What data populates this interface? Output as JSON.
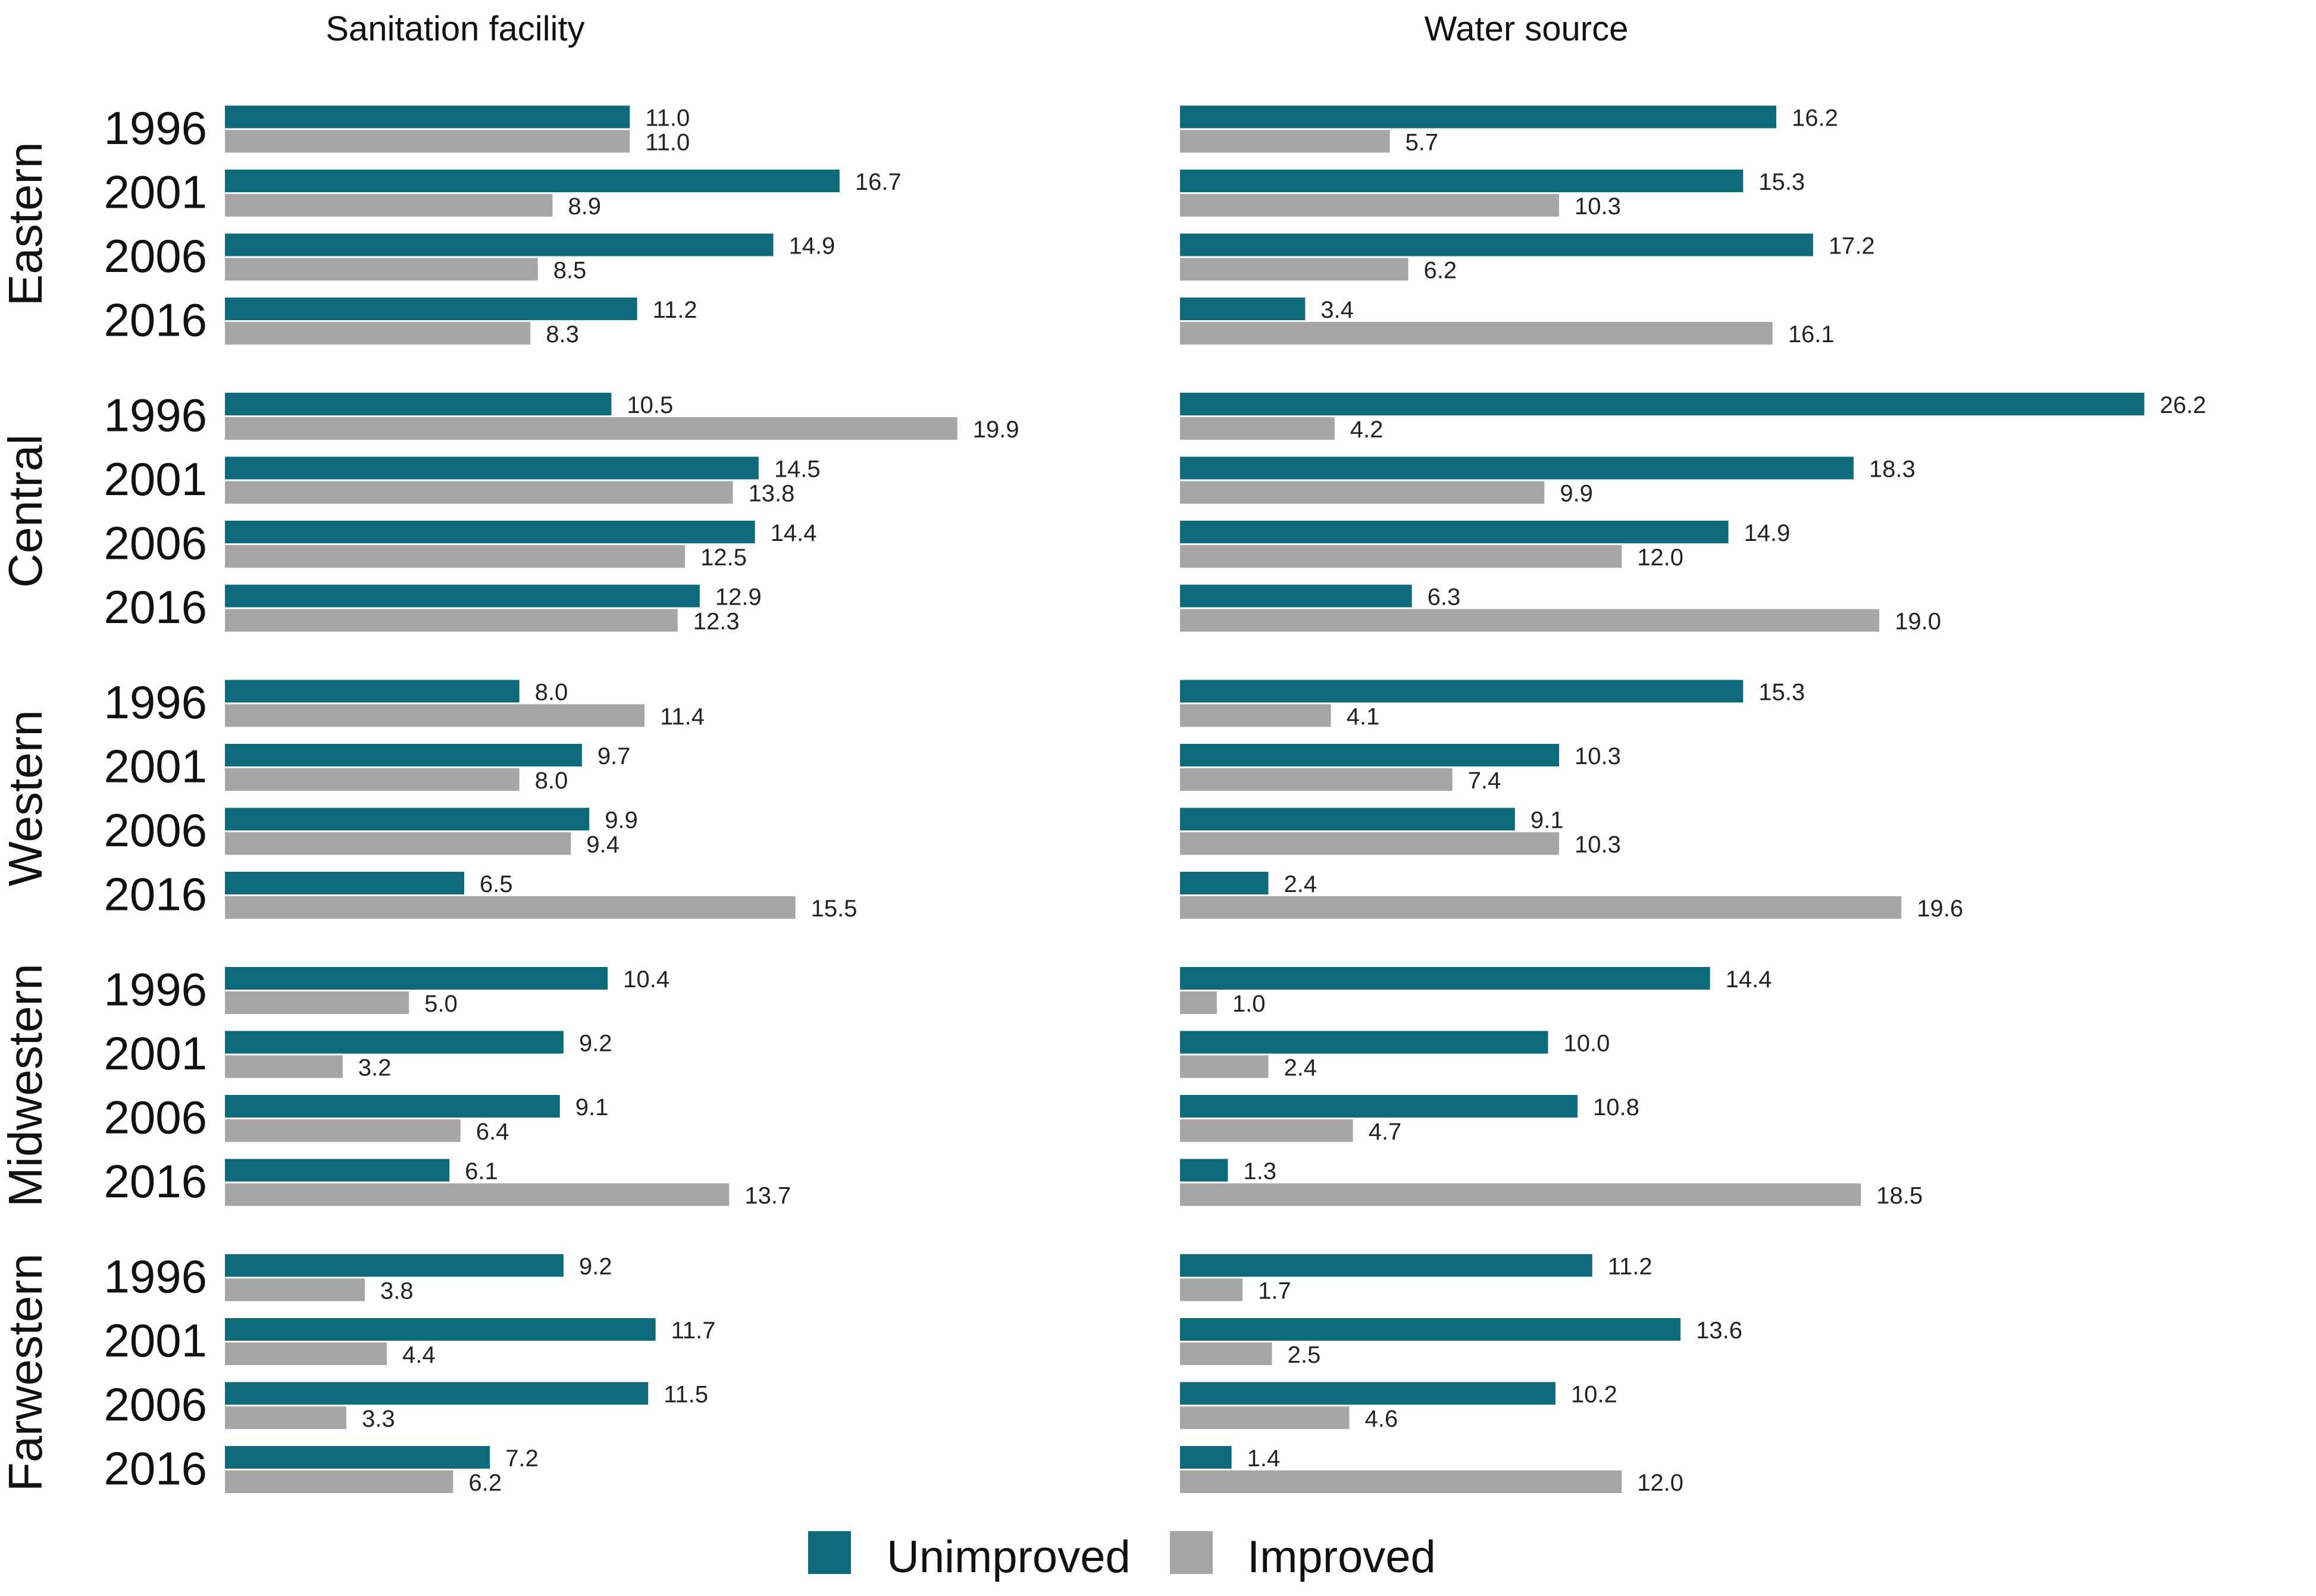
{
  "chart_data": [
    {
      "type": "bar",
      "orientation": "horizontal",
      "title": "Sanitation facility",
      "regions": [
        "Eastern",
        "Central",
        "Western",
        "Midwestern",
        "Farwestern"
      ],
      "years": [
        "1996",
        "2001",
        "2006",
        "2016"
      ],
      "series": [
        {
          "name": "Unimproved",
          "values": [
            [
              11.0,
              16.7,
              14.9,
              11.2
            ],
            [
              10.5,
              14.5,
              14.4,
              12.9
            ],
            [
              8.0,
              9.7,
              9.9,
              6.5
            ],
            [
              10.4,
              9.2,
              9.1,
              6.1
            ],
            [
              9.2,
              11.7,
              11.5,
              7.2
            ]
          ]
        },
        {
          "name": "Improved",
          "values": [
            [
              11.0,
              8.9,
              8.5,
              8.3
            ],
            [
              19.9,
              13.8,
              12.5,
              12.3
            ],
            [
              11.4,
              8.0,
              9.4,
              15.5
            ],
            [
              5.0,
              3.2,
              6.4,
              13.7
            ],
            [
              3.8,
              4.4,
              3.3,
              6.2
            ]
          ]
        }
      ],
      "xlim": [
        0,
        20
      ]
    },
    {
      "type": "bar",
      "orientation": "horizontal",
      "title": "Water source",
      "regions": [
        "Eastern",
        "Central",
        "Western",
        "Midwestern",
        "Farwestern"
      ],
      "years": [
        "1996",
        "2001",
        "2006",
        "2016"
      ],
      "series": [
        {
          "name": "Unimproved",
          "values": [
            [
              16.2,
              15.3,
              17.2,
              3.4
            ],
            [
              26.2,
              18.3,
              14.9,
              6.3
            ],
            [
              15.3,
              10.3,
              9.1,
              2.4
            ],
            [
              14.4,
              10.0,
              10.8,
              1.3
            ],
            [
              11.2,
              13.6,
              10.2,
              1.4
            ]
          ]
        },
        {
          "name": "Improved",
          "values": [
            [
              5.7,
              10.3,
              6.2,
              16.1
            ],
            [
              4.2,
              9.9,
              12.0,
              19.0
            ],
            [
              4.1,
              7.4,
              10.3,
              19.6
            ],
            [
              1.0,
              2.4,
              4.7,
              18.5
            ],
            [
              1.7,
              2.5,
              4.6,
              12.0
            ]
          ]
        }
      ],
      "xlim": [
        0,
        26.2
      ]
    }
  ],
  "legend": {
    "items": [
      {
        "label": "Unimproved",
        "color": "#0c6a7a"
      },
      {
        "label": "Improved",
        "color": "#a6a6a6"
      }
    ]
  }
}
